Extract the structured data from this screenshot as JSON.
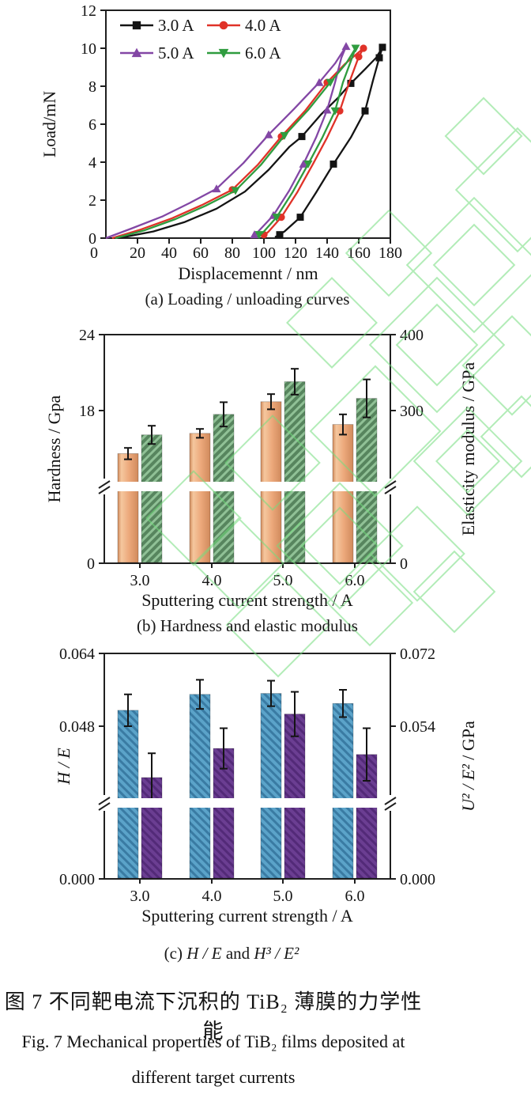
{
  "colors": {
    "axis": "#1f1f1f",
    "watermark": "#74dd7e",
    "series_3A": "#141414",
    "series_4A": "#e03228",
    "series_5A": "#8347a5",
    "series_6A": "#2f9c3f",
    "bar_hardness_light": "#f5c79e",
    "bar_hardness": "#eca87b",
    "bar_hardness_dark": "#d08a5c",
    "bar_modulus": "#57855e",
    "bar_modulus_stripe": "#90c196",
    "bar_HE": "#5ba3c9",
    "bar_HE_stripe": "#3a7ba3",
    "bar_U2E2": "#6b3e92",
    "bar_U2E2_stripe": "#532a78",
    "error_bar": "#141414"
  },
  "figure": {
    "caption_cn": "图 7  不同靶电流下沉积的 TiB₂ 薄膜的力学性能",
    "caption_en_line1": "Fig. 7   Mechanical properties of TiB₂ films deposited at",
    "caption_en_line2": "different target currents"
  },
  "chart_data": [
    {
      "type": "line",
      "panel": "a",
      "title": "(a) Loading / unloading curves",
      "xlabel": "Displacemennt / nm",
      "ylabel": "Load/mN",
      "xlim": [
        0,
        180
      ],
      "ylim": [
        0,
        12
      ],
      "xticks": [
        "0",
        "20",
        "40",
        "60",
        "80",
        "100",
        "120",
        "140",
        "160",
        "180"
      ],
      "yticks": [
        "0",
        "2",
        "4",
        "6",
        "8",
        "10",
        "12"
      ],
      "legend_position": "top-left",
      "grid": false,
      "series": [
        {
          "name": "3.0 A",
          "color": "#141414",
          "marker": "square",
          "points": [
            [
              8,
              0
            ],
            [
              30,
              0.35
            ],
            [
              50,
              0.85
            ],
            [
              70,
              1.55
            ],
            [
              88,
              2.45
            ],
            [
              103,
              3.6
            ],
            [
              116,
              4.8
            ],
            [
              124,
              5.35
            ],
            [
              136,
              6.5
            ],
            [
              147,
              7.4
            ],
            [
              155,
              8.15
            ],
            [
              164,
              8.9
            ],
            [
              171,
              9.5
            ],
            [
              175,
              10.05
            ],
            [
              173,
              9.5
            ],
            [
              169,
              8.3
            ],
            [
              164,
              6.7
            ],
            [
              155,
              5.3
            ],
            [
              144,
              3.9
            ],
            [
              133,
              2.4
            ],
            [
              123,
              1.1
            ],
            [
              113,
              0.35
            ],
            [
              107,
              0.05
            ]
          ],
          "markers": [
            [
              124,
              5.35
            ],
            [
              155,
              8.15
            ],
            [
              175,
              10.05
            ],
            [
              173,
              9.5
            ],
            [
              164,
              6.7
            ],
            [
              144,
              3.9
            ],
            [
              123,
              1.1
            ],
            [
              110,
              0.18
            ]
          ]
        },
        {
          "name": "4.0 A",
          "color": "#e03228",
          "marker": "circle",
          "points": [
            [
              4,
              0
            ],
            [
              22,
              0.45
            ],
            [
              42,
              1.05
            ],
            [
              61,
              1.75
            ],
            [
              80,
              2.55
            ],
            [
              96,
              3.85
            ],
            [
              111,
              5.35
            ],
            [
              126,
              6.7
            ],
            [
              140,
              8.2
            ],
            [
              151,
              9.15
            ],
            [
              158,
              9.65
            ],
            [
              163,
              10.0
            ],
            [
              160,
              9.55
            ],
            [
              154,
              8.2
            ],
            [
              148,
              6.7
            ],
            [
              140,
              5.3
            ],
            [
              131,
              3.9
            ],
            [
              121,
              2.4
            ],
            [
              111,
              1.1
            ],
            [
              103,
              0.35
            ],
            [
              99,
              0.05
            ]
          ],
          "markers": [
            [
              80,
              2.55
            ],
            [
              111,
              5.35
            ],
            [
              140,
              8.2
            ],
            [
              163,
              10.0
            ],
            [
              160,
              9.55
            ],
            [
              148,
              6.7
            ],
            [
              111,
              1.1
            ],
            [
              100,
              0.18
            ]
          ]
        },
        {
          "name": "5.0 A",
          "color": "#8347a5",
          "marker": "triangle-up",
          "points": [
            [
              0,
              0
            ],
            [
              16,
              0.5
            ],
            [
              36,
              1.15
            ],
            [
              53,
              1.85
            ],
            [
              70,
              2.6
            ],
            [
              87,
              3.95
            ],
            [
              103,
              5.45
            ],
            [
              119,
              6.8
            ],
            [
              135,
              8.2
            ],
            [
              145,
              9.2
            ],
            [
              152,
              10.1
            ],
            [
              149,
              9.5
            ],
            [
              145,
              8.2
            ],
            [
              140,
              6.75
            ],
            [
              133,
              5.3
            ],
            [
              125,
              3.9
            ],
            [
              116,
              2.5
            ],
            [
              106,
              1.2
            ],
            [
              97,
              0.4
            ],
            [
              93,
              0.05
            ]
          ],
          "markers": [
            [
              70,
              2.6
            ],
            [
              103,
              5.45
            ],
            [
              135,
              8.2
            ],
            [
              152,
              10.1
            ],
            [
              140,
              6.75
            ],
            [
              125,
              3.9
            ],
            [
              106,
              1.2
            ],
            [
              94,
              0.18
            ]
          ]
        },
        {
          "name": "6.0 A",
          "color": "#2f9c3f",
          "marker": "triangle-down",
          "points": [
            [
              6,
              0
            ],
            [
              24,
              0.4
            ],
            [
              44,
              1.0
            ],
            [
              63,
              1.7
            ],
            [
              82,
              2.5
            ],
            [
              98,
              3.85
            ],
            [
              113,
              5.4
            ],
            [
              128,
              6.75
            ],
            [
              142,
              8.2
            ],
            [
              152,
              9.2
            ],
            [
              158,
              10.0
            ],
            [
              156,
              9.55
            ],
            [
              150,
              8.2
            ],
            [
              145,
              6.7
            ],
            [
              137,
              5.3
            ],
            [
              128,
              3.9
            ],
            [
              118,
              2.4
            ],
            [
              108,
              1.1
            ],
            [
              100,
              0.35
            ],
            [
              96,
              0.05
            ]
          ],
          "markers": [
            [
              82,
              2.5
            ],
            [
              113,
              5.4
            ],
            [
              142,
              8.2
            ],
            [
              158,
              10.0
            ],
            [
              145,
              6.7
            ],
            [
              128,
              3.9
            ],
            [
              108,
              1.1
            ],
            [
              97,
              0.18
            ]
          ]
        }
      ]
    },
    {
      "type": "bar",
      "panel": "b",
      "title": "(b) Hardness and elastic modulus",
      "xlabel": "Sputtering current strength / A",
      "ylabel_left": "Hardness / Gpa",
      "ylabel_right": "Elasticity modulus / GPa",
      "categories": [
        "3.0",
        "4.0",
        "5.0",
        "6.0"
      ],
      "yticks_left": [
        "0",
        "18",
        "24"
      ],
      "yticks_right": [
        "0",
        "300",
        "400"
      ],
      "axis_break": true,
      "series": [
        {
          "name": "Hardness",
          "axis": "left",
          "unit": "GPa",
          "values": [
            14.6,
            16.2,
            18.7,
            16.9
          ],
          "errors": [
            0.45,
            0.35,
            0.6,
            0.8
          ]
        },
        {
          "name": "Elasticity modulus",
          "axis": "right",
          "unit": "GPa",
          "values": [
            268,
            295,
            338,
            316
          ],
          "errors": [
            12,
            16,
            17,
            25
          ]
        }
      ]
    },
    {
      "type": "bar",
      "panel": "c",
      "title": "(c) H / E and H³ / E²",
      "title_parts": [
        {
          "text": "(c) ",
          "italic": false
        },
        {
          "text": "H / E",
          "italic": true
        },
        {
          "text": " and ",
          "italic": false
        },
        {
          "text": "H³ / E²",
          "italic": true
        }
      ],
      "xlabel": "Sputtering current strength / A",
      "ylabel_left": "H / E",
      "ylabel_right": "U² / E² / GPa",
      "categories": [
        "3.0",
        "4.0",
        "5.0",
        "6.0"
      ],
      "yticks_left": [
        "0.000",
        "0.048",
        "0.064"
      ],
      "yticks_right": [
        "0.000",
        "0.054",
        "0.072"
      ],
      "axis_break": true,
      "series": [
        {
          "name": "H / E",
          "axis": "left",
          "values": [
            0.0515,
            0.055,
            0.0552,
            0.053
          ],
          "errors": [
            0.0035,
            0.0032,
            0.0028,
            0.003
          ]
        },
        {
          "name": "U² / E²",
          "axis": "right",
          "values": [
            0.0413,
            0.0485,
            0.057,
            0.047
          ],
          "errors": [
            0.006,
            0.005,
            0.0055,
            0.0065
          ]
        }
      ]
    }
  ]
}
